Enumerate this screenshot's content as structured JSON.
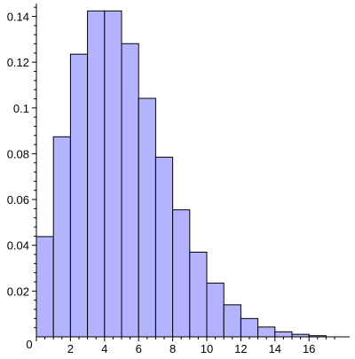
{
  "chart_data": {
    "type": "bar",
    "title": "",
    "xlabel": "",
    "ylabel": "",
    "xlim": [
      0,
      17.8
    ],
    "ylim": [
      0,
      0.145
    ],
    "bin_width": 1,
    "bins": [
      {
        "x0": 0,
        "x1": 1,
        "value": 0.0438
      },
      {
        "x0": 1,
        "x1": 2,
        "value": 0.0874
      },
      {
        "x0": 2,
        "x1": 3,
        "value": 0.1235
      },
      {
        "x0": 3,
        "x1": 4,
        "value": 0.1424
      },
      {
        "x0": 4,
        "x1": 5,
        "value": 0.1424
      },
      {
        "x0": 5,
        "x1": 6,
        "value": 0.1281
      },
      {
        "x0": 6,
        "x1": 7,
        "value": 0.1042
      },
      {
        "x0": 7,
        "x1": 8,
        "value": 0.0785
      },
      {
        "x0": 8,
        "x1": 9,
        "value": 0.0555
      },
      {
        "x0": 9,
        "x1": 10,
        "value": 0.037
      },
      {
        "x0": 10,
        "x1": 11,
        "value": 0.0235
      },
      {
        "x0": 11,
        "x1": 12,
        "value": 0.014
      },
      {
        "x0": 12,
        "x1": 13,
        "value": 0.008
      },
      {
        "x0": 13,
        "x1": 14,
        "value": 0.0043
      },
      {
        "x0": 14,
        "x1": 15,
        "value": 0.0022
      },
      {
        "x0": 15,
        "x1": 16,
        "value": 0.0011
      },
      {
        "x0": 16,
        "x1": 17,
        "value": 0.0005
      }
    ],
    "x_ticks": [
      {
        "value": 0,
        "label": "0"
      },
      {
        "value": 2,
        "label": "2"
      },
      {
        "value": 4,
        "label": "4"
      },
      {
        "value": 6,
        "label": "6"
      },
      {
        "value": 8,
        "label": "8"
      },
      {
        "value": 10,
        "label": "10"
      },
      {
        "value": 12,
        "label": "12"
      },
      {
        "value": 14,
        "label": "14"
      },
      {
        "value": 16,
        "label": "16"
      }
    ],
    "y_ticks": [
      {
        "value": 0.02,
        "label": "0.02"
      },
      {
        "value": 0.04,
        "label": "0.04"
      },
      {
        "value": 0.06,
        "label": "0.06"
      },
      {
        "value": 0.08,
        "label": "0.08"
      },
      {
        "value": 0.1,
        "label": "0.1"
      },
      {
        "value": 0.12,
        "label": "0.12"
      },
      {
        "value": 0.14,
        "label": "0.14"
      }
    ],
    "bar_fill": "#b3b3ff",
    "bar_edge": "#000000",
    "grid": false,
    "legend": "none"
  }
}
